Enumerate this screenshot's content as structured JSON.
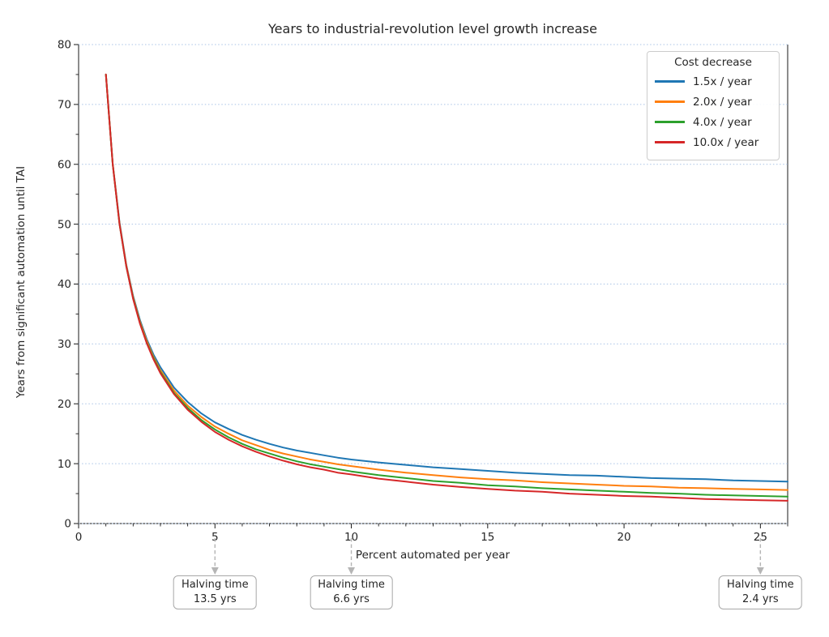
{
  "title": "Years to industrial-revolution level growth increase",
  "axes": {
    "xlabel": "Percent automated per year",
    "ylabel": "Years from significant automation until TAI",
    "x_ticks": [
      0,
      5,
      10,
      15,
      20,
      25
    ],
    "y_ticks": [
      0,
      10,
      20,
      30,
      40,
      50,
      60,
      70,
      80
    ],
    "xlim": [
      0,
      26
    ],
    "ylim": [
      0,
      80
    ]
  },
  "legend": {
    "title": "Cost decrease",
    "items": [
      {
        "label": "1.5x / year",
        "color": "#1f77b4"
      },
      {
        "label": "2.0x / year",
        "color": "#ff7f0e"
      },
      {
        "label": "4.0x / year",
        "color": "#2ca02c"
      },
      {
        "label": "10.0x / year",
        "color": "#d62728"
      }
    ]
  },
  "annotations": [
    {
      "x": 5,
      "line1": "Halving time",
      "line2": "13.5 yrs"
    },
    {
      "x": 10,
      "line1": "Halving time",
      "line2": "6.6 yrs"
    },
    {
      "x": 25,
      "line1": "Halving time",
      "line2": "2.4 yrs"
    }
  ],
  "style": {
    "grid_color": "#a9c3e6",
    "spine_color": "#1a1a1a",
    "arrow_color": "#b5b5b5",
    "text_color": "#262626"
  },
  "chart_data": {
    "type": "line",
    "title": "Years to industrial-revolution level growth increase",
    "xlabel": "Percent automated per year",
    "ylabel": "Years from significant automation until TAI",
    "xlim": [
      0,
      26
    ],
    "ylim": [
      0,
      80
    ],
    "grid": "horizontal dotted at every 10 on y-axis",
    "legend_position": "upper right",
    "legend_title": "Cost decrease",
    "x": [
      1,
      1.25,
      1.5,
      1.75,
      2,
      2.25,
      2.5,
      2.75,
      3,
      3.5,
      4,
      4.5,
      5,
      5.5,
      6,
      6.5,
      7,
      7.5,
      8,
      8.5,
      9,
      9.5,
      10,
      11,
      12,
      13,
      14,
      15,
      16,
      17,
      18,
      19,
      20,
      21,
      22,
      23,
      24,
      25,
      26
    ],
    "series": [
      {
        "name": "1.5x / year",
        "color": "#1f77b4",
        "values": [
          75.0,
          60.1,
          50.3,
          43.2,
          38.0,
          34.0,
          30.8,
          28.2,
          26.1,
          22.7,
          20.3,
          18.4,
          16.9,
          15.8,
          14.8,
          14.0,
          13.3,
          12.7,
          12.2,
          11.8,
          11.4,
          11.0,
          10.7,
          10.2,
          9.8,
          9.4,
          9.1,
          8.8,
          8.5,
          8.3,
          8.1,
          8.0,
          7.8,
          7.6,
          7.5,
          7.4,
          7.2,
          7.1,
          7.0
        ]
      },
      {
        "name": "2.0x / year",
        "color": "#ff7f0e",
        "values": [
          75.0,
          60.1,
          50.1,
          43.1,
          37.8,
          33.7,
          30.5,
          27.8,
          25.6,
          22.2,
          19.7,
          17.8,
          16.2,
          15.0,
          13.9,
          13.1,
          12.3,
          11.7,
          11.2,
          10.7,
          10.3,
          9.9,
          9.6,
          9.0,
          8.5,
          8.1,
          7.7,
          7.4,
          7.2,
          6.9,
          6.7,
          6.5,
          6.3,
          6.2,
          6.0,
          5.9,
          5.8,
          5.7,
          5.6
        ]
      },
      {
        "name": "4.0x / year",
        "color": "#2ca02c",
        "values": [
          75.0,
          60.0,
          50.0,
          42.9,
          37.6,
          33.5,
          30.2,
          27.6,
          25.3,
          21.8,
          19.3,
          17.3,
          15.7,
          14.4,
          13.3,
          12.4,
          11.7,
          11.0,
          10.4,
          9.9,
          9.5,
          9.1,
          8.7,
          8.1,
          7.6,
          7.1,
          6.8,
          6.4,
          6.2,
          5.9,
          5.7,
          5.5,
          5.3,
          5.1,
          5.0,
          4.8,
          4.7,
          4.6,
          4.5
        ]
      },
      {
        "name": "10.0x / year",
        "color": "#d62728",
        "values": [
          75.0,
          60.0,
          50.0,
          42.9,
          37.5,
          33.4,
          30.1,
          27.4,
          25.1,
          21.6,
          19.0,
          17.0,
          15.3,
          14.0,
          12.9,
          12.0,
          11.2,
          10.5,
          9.9,
          9.4,
          9.0,
          8.5,
          8.2,
          7.5,
          7.0,
          6.5,
          6.1,
          5.8,
          5.5,
          5.3,
          5.0,
          4.8,
          4.6,
          4.5,
          4.3,
          4.1,
          4.0,
          3.9,
          3.8
        ]
      }
    ],
    "annotations": [
      {
        "x": 5,
        "text": "Halving time 13.5 yrs"
      },
      {
        "x": 10,
        "text": "Halving time 6.6 yrs"
      },
      {
        "x": 25,
        "text": "Halving time 2.4 yrs"
      }
    ]
  }
}
